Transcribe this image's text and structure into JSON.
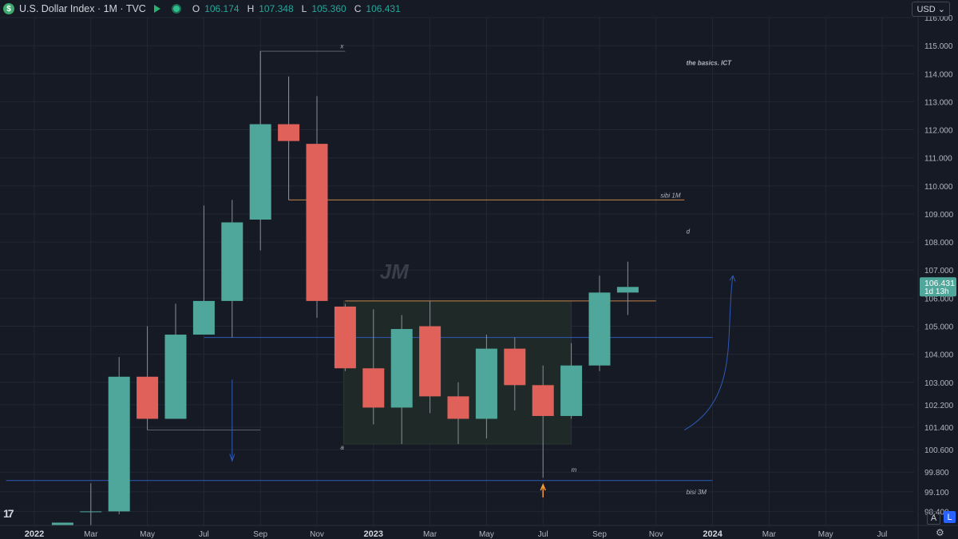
{
  "header": {
    "symbol_icon": "$",
    "title": "U.S. Dollar Index · 1M · TVC",
    "ohlc": [
      {
        "k": "O",
        "v": "106.174"
      },
      {
        "k": "H",
        "v": "107.348"
      },
      {
        "k": "L",
        "v": "105.360"
      },
      {
        "k": "C",
        "v": "106.431"
      }
    ]
  },
  "currency": "USD",
  "buttons": {
    "auto": "A",
    "log": "L"
  },
  "logo": "17",
  "colors": {
    "up": "#4fa79b",
    "down": "#e0605a",
    "bg": "#161a25",
    "grid": "#232734",
    "blue": "#2e5bb8",
    "orange": "#f59b3a"
  },
  "chart_data": {
    "type": "candlestick",
    "ylim": [
      97.9,
      116.0
    ],
    "x_ticks": [
      "2022",
      "Mar",
      "May",
      "Jul",
      "Sep",
      "Nov",
      "2023",
      "Mar",
      "May",
      "Jul",
      "Sep",
      "Nov",
      "2024",
      "Mar",
      "May",
      "Jul"
    ],
    "y_ticks": [
      "116.000",
      "115.000",
      "114.000",
      "113.000",
      "112.000",
      "111.000",
      "110.000",
      "109.000",
      "108.000",
      "107.000",
      "106.000",
      "105.000",
      "104.000",
      "103.000",
      "102.200",
      "101.400",
      "100.600",
      "99.800",
      "99.100",
      "98.400"
    ],
    "candles": [
      {
        "date": "2022-02",
        "o": 97.9,
        "h": 98.0,
        "l": 97.9,
        "c": 98.0
      },
      {
        "date": "2022-03",
        "o": 98.4,
        "h": 99.4,
        "l": 97.9,
        "c": 98.4
      },
      {
        "date": "2022-04",
        "o": 98.4,
        "h": 103.9,
        "l": 98.3,
        "c": 103.2
      },
      {
        "date": "2022-05",
        "o": 103.2,
        "h": 105.0,
        "l": 101.3,
        "c": 101.7
      },
      {
        "date": "2022-06",
        "o": 101.7,
        "h": 105.8,
        "l": 101.7,
        "c": 104.7
      },
      {
        "date": "2022-07",
        "o": 104.7,
        "h": 109.3,
        "l": 104.7,
        "c": 105.9
      },
      {
        "date": "2022-08",
        "o": 105.9,
        "h": 109.5,
        "l": 104.6,
        "c": 108.7
      },
      {
        "date": "2022-09",
        "o": 108.8,
        "h": 114.8,
        "l": 107.7,
        "c": 112.2
      },
      {
        "date": "2022-10",
        "o": 112.2,
        "h": 113.9,
        "l": 109.5,
        "c": 111.6
      },
      {
        "date": "2022-11",
        "o": 111.5,
        "h": 113.2,
        "l": 105.3,
        "c": 105.9
      },
      {
        "date": "2022-12",
        "o": 105.7,
        "h": 105.8,
        "l": 103.4,
        "c": 103.5
      },
      {
        "date": "2023-01",
        "o": 103.5,
        "h": 105.6,
        "l": 101.5,
        "c": 102.1
      },
      {
        "date": "2023-02",
        "o": 102.1,
        "h": 105.4,
        "l": 100.8,
        "c": 104.9
      },
      {
        "date": "2023-03",
        "o": 105.0,
        "h": 105.9,
        "l": 101.9,
        "c": 102.5
      },
      {
        "date": "2023-04",
        "o": 102.5,
        "h": 103.0,
        "l": 100.8,
        "c": 101.7
      },
      {
        "date": "2023-05",
        "o": 101.7,
        "h": 104.7,
        "l": 101.0,
        "c": 104.2
      },
      {
        "date": "2023-06",
        "o": 104.2,
        "h": 104.6,
        "l": 102.0,
        "c": 102.9
      },
      {
        "date": "2023-07",
        "o": 102.9,
        "h": 103.6,
        "l": 99.6,
        "c": 101.8
      },
      {
        "date": "2023-08",
        "o": 101.8,
        "h": 104.4,
        "l": 101.7,
        "c": 103.6
      },
      {
        "date": "2023-09",
        "o": 103.6,
        "h": 106.8,
        "l": 103.4,
        "c": 106.2
      },
      {
        "date": "2023-10",
        "o": 106.2,
        "h": 107.3,
        "l": 105.4,
        "c": 106.4
      }
    ],
    "price_label": {
      "value": "106.431",
      "countdown": "1d 13h"
    },
    "annotations": [
      {
        "text": "the basics. ICT",
        "date": "2024-01",
        "y": 114.3
      },
      {
        "text": "sibi 1M",
        "date": "2023-12",
        "y": 109.5
      },
      {
        "text": "d",
        "date": "2024-01",
        "y": 108.3
      },
      {
        "text": "JM",
        "date": "2023-01",
        "y": 106.7
      },
      {
        "text": "a",
        "date": "2022-12",
        "y": 100.6
      },
      {
        "text": "m",
        "date": "2023-08",
        "y": 99.8
      },
      {
        "text": "bisi 3M",
        "date": "2024-01",
        "y": 99.3
      },
      {
        "text": "x",
        "date": "2022-12",
        "y": 114.9
      }
    ]
  }
}
